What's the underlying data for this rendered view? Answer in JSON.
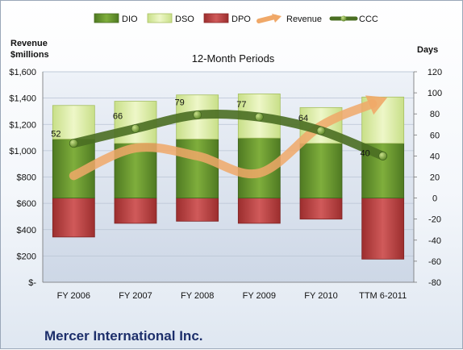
{
  "chart_data": {
    "type": "bar",
    "title": "12-Month Periods",
    "company": "Mercer International Inc.",
    "ylabel_left": "Revenue $millions",
    "ylabel_left_lines": [
      "Revenue",
      "$millions"
    ],
    "ylabel_right": "Days",
    "categories": [
      "FY 2006",
      "FY 2007",
      "FY 2008",
      "FY 2009",
      "FY 2010",
      "TTM 6-2011"
    ],
    "left_axis": {
      "min": 0,
      "max": 1600,
      "step": 200,
      "tick_labels": [
        "$-",
        "$200",
        "$400",
        "$600",
        "$800",
        "$1,000",
        "$1,200",
        "$1,400",
        "$1,600"
      ]
    },
    "right_axis": {
      "min": -80,
      "max": 120,
      "step": 20,
      "tick_labels": [
        "-80",
        "-60",
        "-40",
        "-20",
        "0",
        "20",
        "40",
        "60",
        "80",
        "100",
        "120"
      ]
    },
    "legend_position": "top",
    "grid": true,
    "series": [
      {
        "name": "DIO",
        "type": "stacked-bar",
        "axis": "right",
        "color": "#5f8f2a",
        "values": [
          56,
          52,
          56,
          57,
          52,
          52
        ]
      },
      {
        "name": "DSO",
        "type": "stacked-bar",
        "axis": "right",
        "color": "#d8eaa0",
        "values": [
          32,
          40,
          42,
          42,
          34,
          44
        ]
      },
      {
        "name": "DPO",
        "type": "stacked-bar-negative",
        "axis": "right",
        "color": "#b43a3a",
        "values": [
          -37,
          -24,
          -22,
          -24,
          -20,
          -58
        ]
      },
      {
        "name": "Revenue",
        "type": "line",
        "axis": "left",
        "color": "#f0a868",
        "values": [
          810,
          1020,
          960,
          830,
          1190,
          1390
        ]
      },
      {
        "name": "CCC",
        "type": "line",
        "axis": "right",
        "color": "#4a6e22",
        "values": [
          52,
          66,
          79,
          77,
          64,
          40
        ],
        "point_labels": [
          "52",
          "66",
          "79",
          "77",
          "64",
          "40"
        ]
      }
    ]
  }
}
